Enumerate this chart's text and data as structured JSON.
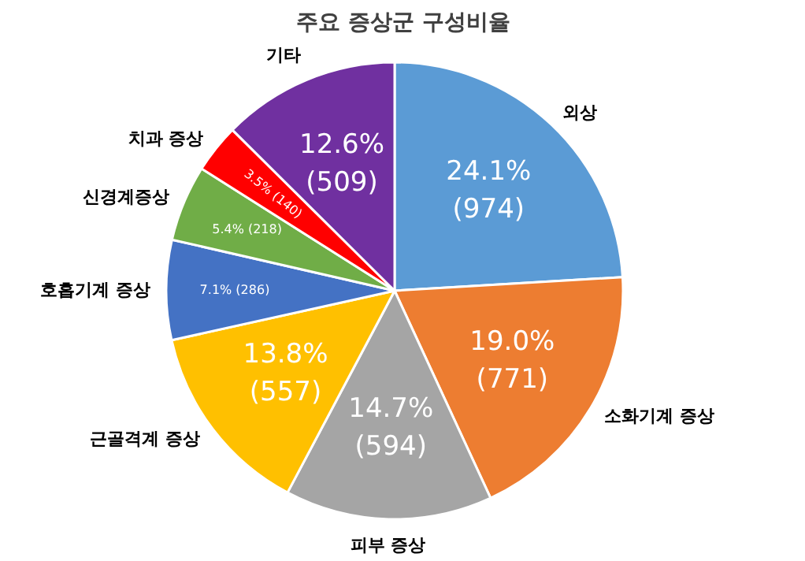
{
  "chart_data": {
    "type": "pie",
    "title": "주요 증상군 구성비율",
    "categories": [
      "외상",
      "소화기계 증상",
      "피부 증상",
      "근골격계 증상",
      "호흡기계 증상",
      "신경계증상",
      "치과 증상",
      "기타"
    ],
    "values": [
      974,
      771,
      594,
      557,
      286,
      218,
      140,
      509
    ],
    "colors": [
      "#5b9bd5",
      "#ed7d31",
      "#a5a5a5",
      "#ffc000",
      "#4472c4",
      "#70ad47",
      "#ff0000",
      "#7030a0"
    ],
    "value_labels": [
      "24.1%\n(974)",
      "19.0%\n(771)",
      "14.7%\n(594)",
      "13.8%\n(557)",
      "7.1% (286)",
      "5.4% (218)",
      "3.5% (140)",
      "12.6%\n(509)"
    ]
  }
}
